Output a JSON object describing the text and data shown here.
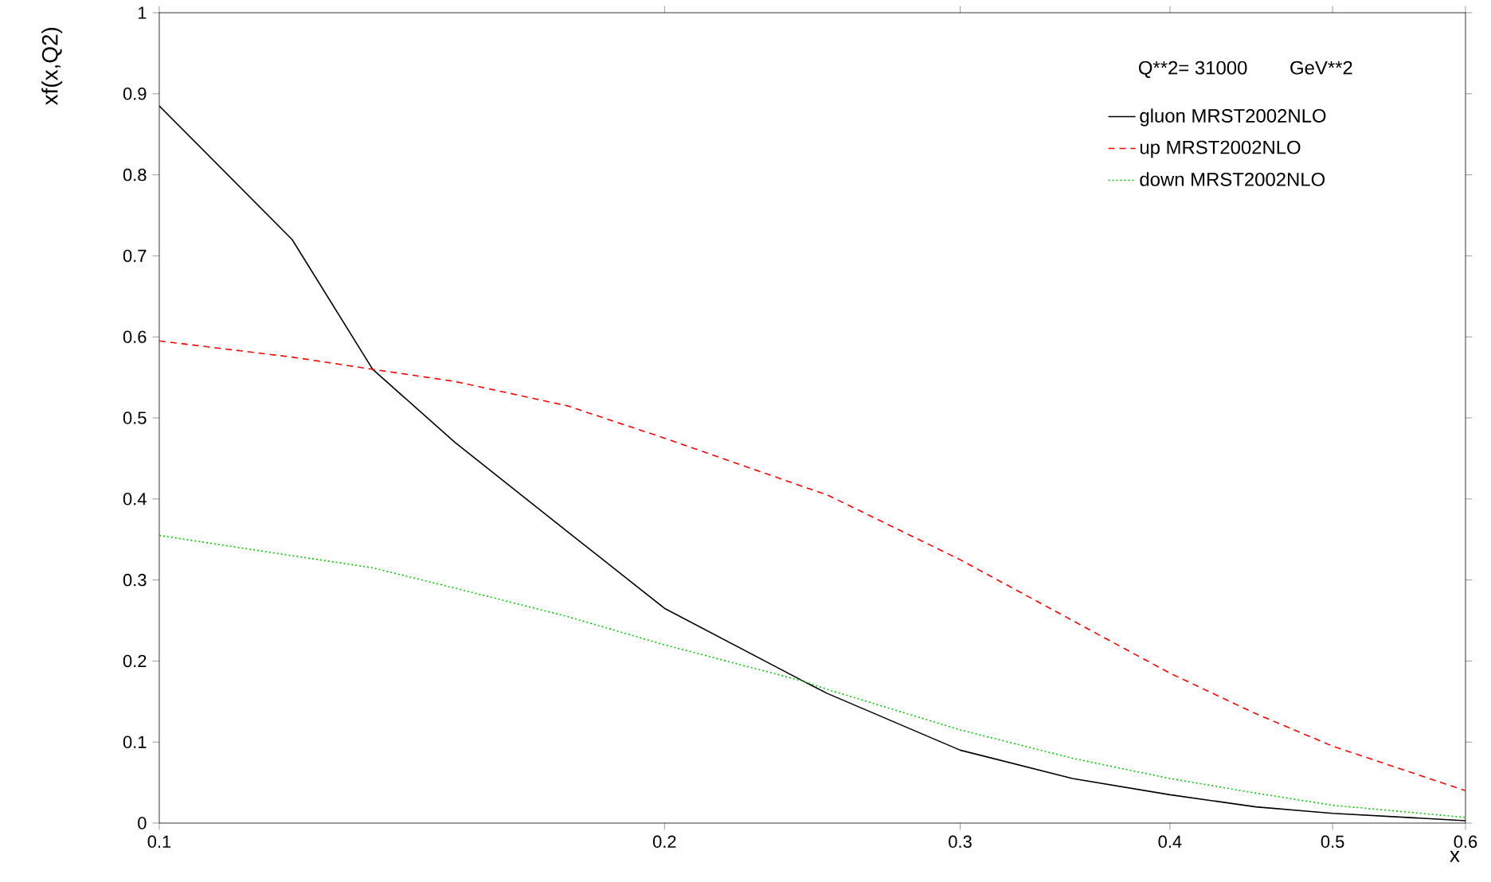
{
  "chart_data": {
    "type": "line",
    "xlabel": "x",
    "ylabel": "xf(x,Q2)",
    "legend_title": "Q**2=   31000",
    "annotations": [
      "GeV**2"
    ],
    "log": "x",
    "xlim": [
      0.1,
      0.6
    ],
    "ylim": [
      0,
      1
    ],
    "xticks": [
      0.1,
      0.2,
      0.3,
      0.4,
      0.5,
      0.6
    ],
    "yticks": [
      0,
      0.1,
      0.2,
      0.3,
      0.4,
      0.5,
      0.6,
      0.7,
      0.8,
      0.9,
      1
    ],
    "legend": "top right",
    "grid": false,
    "marker": "none",
    "x": [
      0.1,
      0.12,
      0.134,
      0.15,
      0.175,
      0.2,
      0.242,
      0.25,
      0.3,
      0.35,
      0.4,
      0.45,
      0.5,
      0.6
    ],
    "series": [
      {
        "name": "gluon      MRST2002NLO",
        "color": "#000000",
        "line_style": "solid",
        "values": [
          0.885,
          0.72,
          0.56,
          0.47,
          0.36,
          0.265,
          0.175,
          0.16,
          0.09,
          0.055,
          0.035,
          0.02,
          0.012,
          0.003
        ]
      },
      {
        "name": "up           MRST2002NLO",
        "color": "#ff0000",
        "line_style": "dashed",
        "values": [
          0.595,
          0.575,
          0.56,
          0.545,
          0.515,
          0.475,
          0.415,
          0.405,
          0.325,
          0.25,
          0.185,
          0.135,
          0.095,
          0.04
        ]
      },
      {
        "name": "down       MRST2002NLO",
        "color": "#00cc00",
        "line_style": "dotted",
        "values": [
          0.355,
          0.33,
          0.315,
          0.29,
          0.255,
          0.22,
          0.175,
          0.165,
          0.115,
          0.08,
          0.055,
          0.037,
          0.022,
          0.007
        ]
      }
    ]
  }
}
